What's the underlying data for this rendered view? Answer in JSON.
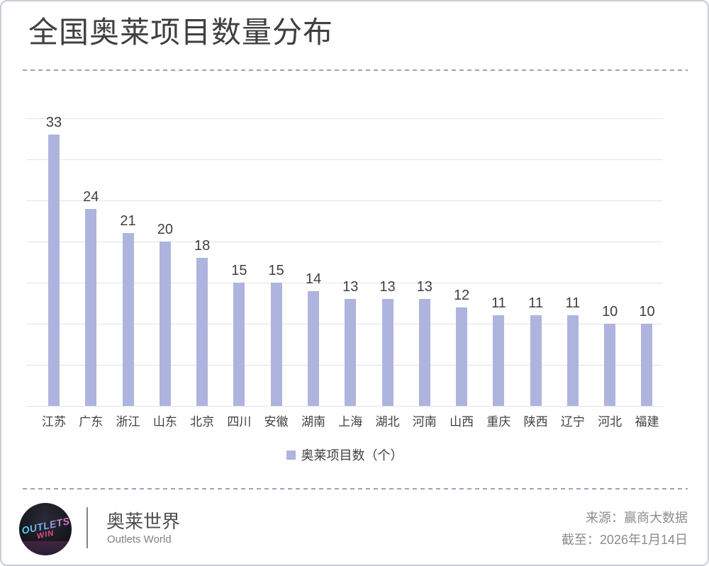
{
  "page": {
    "title": "全国奥莱项目数量分布"
  },
  "chart_data": {
    "type": "bar",
    "title": "全国奥莱项目数量分布",
    "categories": [
      "江苏",
      "广东",
      "浙江",
      "山东",
      "北京",
      "四川",
      "安徽",
      "湖南",
      "上海",
      "湖北",
      "河南",
      "山西",
      "重庆",
      "陕西",
      "辽宁",
      "河北",
      "福建"
    ],
    "values": [
      33,
      24,
      21,
      20,
      18,
      15,
      15,
      14,
      13,
      13,
      13,
      12,
      11,
      11,
      11,
      10,
      10
    ],
    "series_name": "奥莱项目数（个）",
    "xlabel": "",
    "ylabel": "",
    "ylim": [
      0,
      35
    ],
    "grid_step": 5,
    "grid_on": true,
    "value_labels_visible": true,
    "legend_position": "bottom",
    "bar_color": "#aeb4de"
  },
  "legend": {
    "swatch_color": "#aeb4de",
    "label": "奥莱项目数（个）"
  },
  "footer": {
    "logo": {
      "line1": "OUTLETS",
      "line2": "WIN"
    },
    "brand_cn": "奥莱世界",
    "brand_en": "Outlets World",
    "source": "来源：赢商大数据",
    "as_of": "截至：2026年1月14日"
  },
  "colors": {
    "bar": "#aeb4de",
    "gridline": "#e3e3e8",
    "dashed_divider": "#9aa4be",
    "title_text": "#3f3f3f",
    "muted_text": "#8c8c8c"
  }
}
